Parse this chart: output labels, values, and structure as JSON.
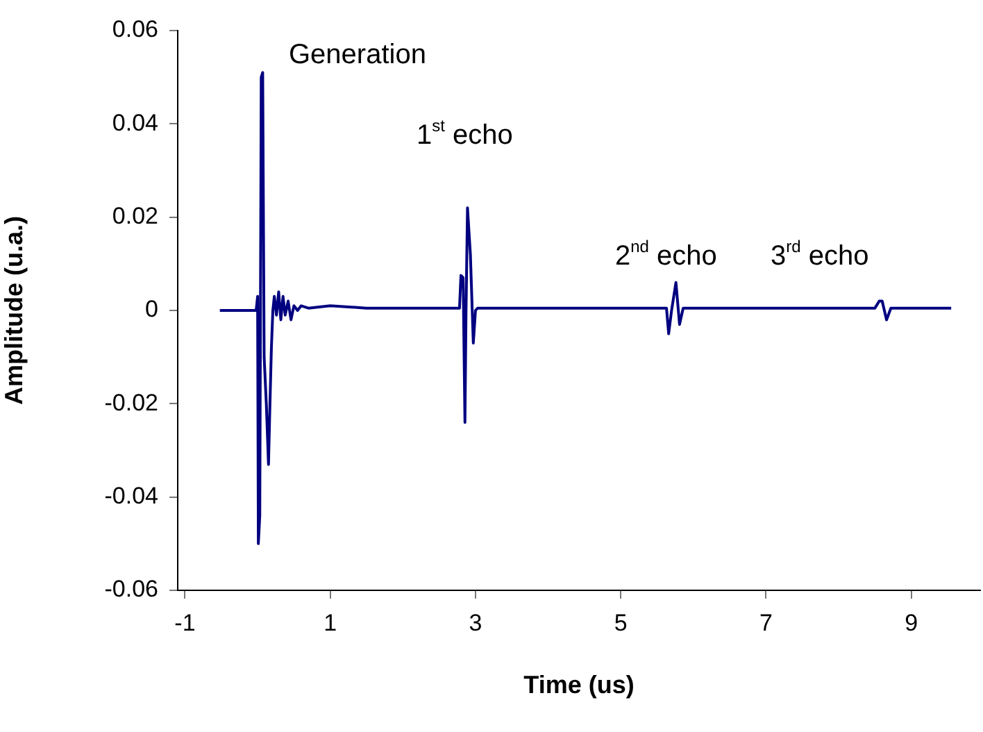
{
  "chart_data": {
    "type": "line",
    "xlabel": "Time (us)",
    "ylabel": "Amplitude (u.a.)",
    "xlim": [
      -1.1,
      9.95
    ],
    "xticks": [
      -1,
      1,
      3,
      5,
      7,
      9
    ],
    "ylim": [
      -0.06,
      0.06
    ],
    "yticks": [
      0.06,
      0.04,
      0.02,
      0,
      -0.02,
      -0.04,
      -0.06
    ],
    "marker": "none",
    "line_style": "solid",
    "series": [
      {
        "color": "#000080",
        "x": [
          -0.52,
          -0.02,
          0.0,
          0.01,
          0.03,
          0.05,
          0.07,
          0.09,
          0.12,
          0.15,
          0.17,
          0.19,
          0.21,
          0.23,
          0.26,
          0.29,
          0.32,
          0.35,
          0.38,
          0.42,
          0.46,
          0.5,
          0.55,
          0.6,
          0.7,
          1.0,
          1.5,
          2.0,
          2.5,
          2.78,
          2.8,
          2.83,
          2.855,
          2.87,
          2.89,
          2.93,
          2.97,
          3.0,
          3.03,
          3.3,
          4.0,
          4.5,
          5.0,
          5.5,
          5.63,
          5.66,
          5.7,
          5.76,
          5.81,
          5.86,
          6.2,
          7.0,
          7.5,
          8.0,
          8.5,
          8.56,
          8.6,
          8.66,
          8.72,
          9.0,
          9.55
        ],
        "values": [
          0,
          0,
          0.003,
          -0.05,
          -0.044,
          0.05,
          0.051,
          -0.01,
          -0.02,
          -0.033,
          -0.02,
          -0.008,
          0.0,
          0.003,
          -0.001,
          0.004,
          -0.002,
          0.003,
          -0.001,
          0.002,
          -0.002,
          0.001,
          0.0,
          0.001,
          0.0005,
          0.001,
          0.0005,
          0.0005,
          0.0005,
          0.0005,
          0.0075,
          0.007,
          -0.024,
          0.0,
          0.022,
          0.012,
          -0.007,
          0.0,
          0.0005,
          0.0005,
          0.0005,
          0.0005,
          0.0005,
          0.0005,
          0.0005,
          -0.005,
          0.0,
          0.006,
          -0.003,
          0.0005,
          0.0005,
          0.0005,
          0.0005,
          0.0005,
          0.0005,
          0.002,
          0.002,
          -0.002,
          0.0005,
          0.0005,
          0.0005
        ]
      }
    ],
    "annotations": [
      "Generation",
      "1$^{st}$ echo",
      "2$^{nd}$ echo",
      "3$^{rd}$ echo"
    ]
  }
}
